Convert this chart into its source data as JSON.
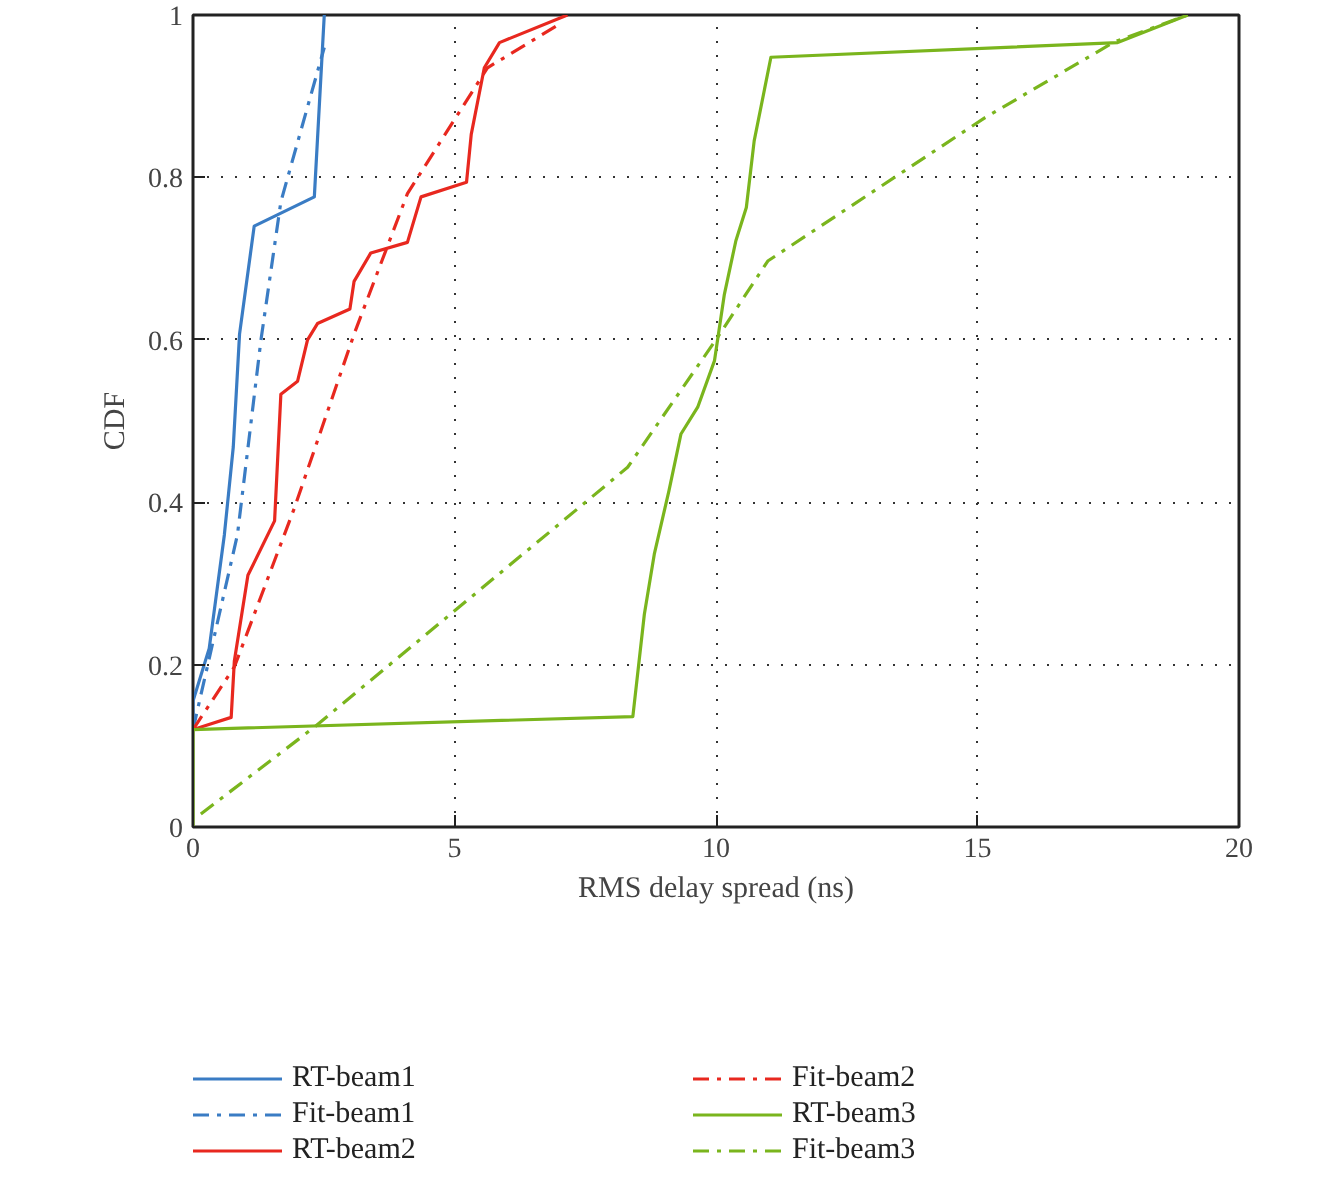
{
  "chart_data": {
    "type": "line",
    "xlabel": "RMS delay spread (ns)",
    "ylabel": "CDF",
    "xlim": [
      0,
      20
    ],
    "ylim": [
      0,
      1
    ],
    "xticks": [
      0,
      5,
      10,
      15,
      20
    ],
    "yticks": [
      0,
      0.2,
      0.4,
      0.6,
      0.8,
      1
    ],
    "grid": true,
    "legend": "bottom",
    "marker": "none",
    "series": [
      {
        "name": "RT-beam1",
        "color": "#3a7cc4",
        "line_style": "solid",
        "x": [
          0,
          0,
          0.31,
          0.6,
          0.77,
          0.89,
          1.17,
          2.32,
          2.51
        ],
        "values": [
          0.12,
          0.155,
          0.22,
          0.36,
          0.468,
          0.607,
          0.74,
          0.776,
          1.0
        ]
      },
      {
        "name": "Fit-beam1",
        "color": "#3a7cc4",
        "line_style": "dashdot",
        "x": [
          0,
          0.85,
          1.3,
          1.68,
          2.51
        ],
        "values": [
          0.12,
          0.36,
          0.6,
          0.77,
          0.96
        ]
      },
      {
        "name": "RT-beam2",
        "color": "#e8281f",
        "line_style": "solid",
        "x": [
          0,
          0.73,
          0.79,
          1.05,
          1.56,
          1.68,
          2.0,
          2.19,
          2.38,
          3.0,
          3.08,
          3.4,
          4.1,
          4.36,
          5.23,
          5.32,
          5.57,
          5.86,
          7.16
        ],
        "values": [
          0.12,
          0.135,
          0.204,
          0.31,
          0.377,
          0.533,
          0.549,
          0.6,
          0.62,
          0.638,
          0.672,
          0.707,
          0.72,
          0.776,
          0.794,
          0.853,
          0.935,
          0.966,
          1.0
        ]
      },
      {
        "name": "Fit-beam2",
        "color": "#e8281f",
        "line_style": "dashdot",
        "x": [
          0,
          0.79,
          1.94,
          3.08,
          4.1,
          5.63,
          7.04
        ],
        "values": [
          0.12,
          0.197,
          0.393,
          0.607,
          0.78,
          0.935,
          0.99
        ]
      },
      {
        "name": "RT-beam3",
        "color": "#7ab51d",
        "line_style": "solid",
        "x": [
          0,
          0,
          8.41,
          8.63,
          8.82,
          9.1,
          9.33,
          9.65,
          9.97,
          10.16,
          10.38,
          10.58,
          10.73,
          11.05,
          17.68,
          19.02
        ],
        "values": [
          0,
          0.12,
          0.136,
          0.262,
          0.336,
          0.414,
          0.484,
          0.517,
          0.574,
          0.656,
          0.722,
          0.763,
          0.845,
          0.948,
          0.966,
          1.0
        ]
      },
      {
        "name": "Fit-beam3",
        "color": "#7ab51d",
        "line_style": "dashdot",
        "x": [
          0.15,
          2.32,
          8.31,
          10.03,
          10.99,
          15.13,
          17.62,
          19.02
        ],
        "values": [
          0.016,
          0.123,
          0.443,
          0.603,
          0.697,
          0.873,
          0.967,
          1.0
        ]
      }
    ]
  }
}
